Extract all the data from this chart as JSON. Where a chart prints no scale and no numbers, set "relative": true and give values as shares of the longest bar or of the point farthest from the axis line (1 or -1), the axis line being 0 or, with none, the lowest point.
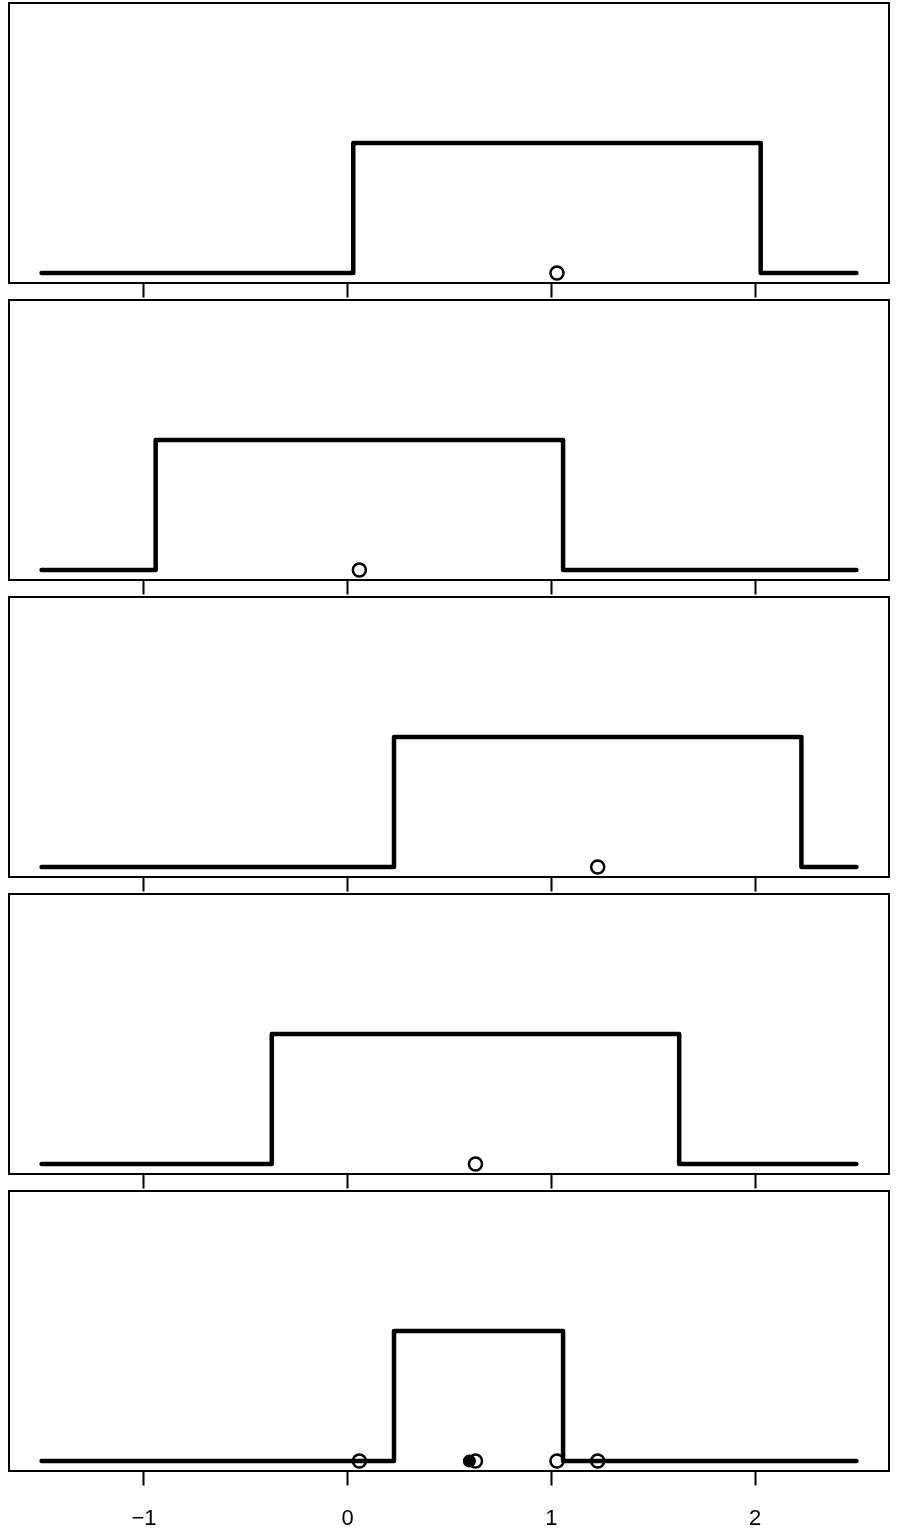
{
  "chart_data": [
    {
      "type": "step",
      "relative": true,
      "xlim": [
        -1.66,
        2.66
      ],
      "xticks": [
        -1,
        0,
        1,
        2
      ],
      "tick_labels": false,
      "grid": false,
      "series": [
        {
          "color": "#000000",
          "x": [
            -1.5,
            0.03,
            2.03,
            2.5
          ],
          "values": [
            0,
            1,
            0,
            0
          ]
        },
        {
          "type": "scatter",
          "color": "#000000",
          "marker": "circle",
          "x": [
            1.03
          ],
          "values": [
            0
          ]
        }
      ]
    },
    {
      "type": "step",
      "relative": true,
      "xlim": [
        -1.66,
        2.66
      ],
      "xticks": [
        -1,
        0,
        1,
        2
      ],
      "tick_labels": false,
      "grid": false,
      "series": [
        {
          "color": "#000000",
          "x": [
            -1.5,
            -0.94,
            1.06,
            2.5
          ],
          "values": [
            0,
            1,
            0,
            0
          ]
        },
        {
          "type": "scatter",
          "color": "#000000",
          "marker": "circle",
          "x": [
            0.06
          ],
          "values": [
            0
          ]
        }
      ]
    },
    {
      "type": "step",
      "relative": true,
      "xlim": [
        -1.66,
        2.66
      ],
      "xticks": [
        -1,
        0,
        1,
        2
      ],
      "tick_labels": false,
      "grid": false,
      "series": [
        {
          "color": "#000000",
          "x": [
            -1.5,
            0.23,
            2.23,
            2.5
          ],
          "values": [
            0,
            1,
            0,
            0
          ]
        },
        {
          "type": "scatter",
          "color": "#000000",
          "marker": "circle",
          "x": [
            1.23
          ],
          "values": [
            0
          ]
        }
      ]
    },
    {
      "type": "step",
      "relative": true,
      "xlim": [
        -1.66,
        2.66
      ],
      "xticks": [
        -1,
        0,
        1,
        2
      ],
      "tick_labels": false,
      "grid": false,
      "series": [
        {
          "color": "#000000",
          "x": [
            -1.5,
            -0.37,
            1.63,
            2.5
          ],
          "values": [
            0,
            1,
            0,
            0
          ]
        },
        {
          "type": "scatter",
          "color": "#000000",
          "marker": "circle",
          "x": [
            0.63
          ],
          "values": [
            0
          ]
        }
      ]
    },
    {
      "type": "step",
      "relative": true,
      "xlim": [
        -1.66,
        2.66
      ],
      "xticks": [
        -1,
        0,
        1,
        2
      ],
      "tick_labels": "x",
      "grid": false,
      "series": [
        {
          "color": "#000000",
          "x": [
            -1.5,
            0.23,
            1.06,
            2.5
          ],
          "values": [
            0,
            1,
            0,
            0
          ]
        },
        {
          "type": "scatter",
          "color": "#000000",
          "marker": "circle",
          "x": [
            0.06,
            0.63,
            1.03,
            1.23
          ],
          "values": [
            0,
            0,
            0,
            0
          ]
        },
        {
          "type": "scatter",
          "color": "#000000",
          "marker": "circle",
          "x": [
            0.6
          ],
          "values": [
            0
          ]
        }
      ]
    }
  ]
}
